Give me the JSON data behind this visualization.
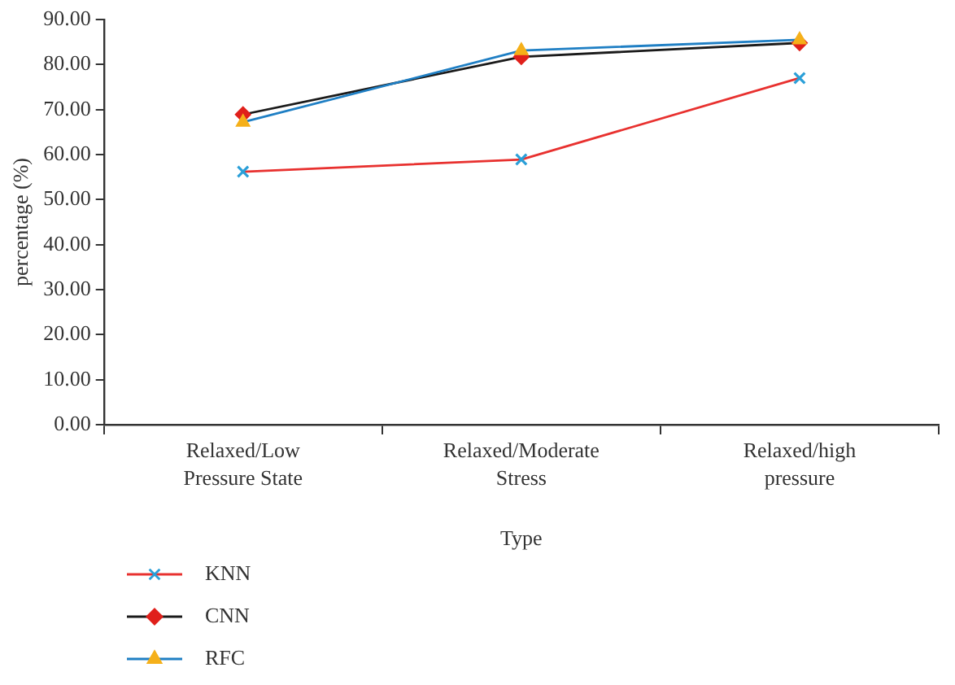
{
  "chart_data": {
    "type": "line",
    "xlabel": "Type",
    "ylabel": "percentage (%)",
    "categories": [
      "Relaxed/Low Pressure State",
      "Relaxed/Moderate Stress",
      "Relaxed/high pressure"
    ],
    "series": [
      {
        "name": "KNN",
        "color": "#e8312f",
        "marker": "cross",
        "values": [
          56.2,
          58.9,
          77.0
        ]
      },
      {
        "name": "CNN",
        "color": "#1a1a1a",
        "marker": "diamond",
        "values": [
          68.9,
          81.7,
          84.8
        ]
      },
      {
        "name": "RFC",
        "color": "#1f7fc4",
        "marker": "triangle",
        "values": [
          67.2,
          83.1,
          85.5
        ]
      }
    ],
    "ylim": [
      0,
      90
    ],
    "yticks": [
      {
        "value": 0,
        "label": "0.00"
      },
      {
        "value": 10,
        "label": "10.00"
      },
      {
        "value": 20,
        "label": "20.00"
      },
      {
        "value": 30,
        "label": "30.00"
      },
      {
        "value": 40,
        "label": "40.00"
      },
      {
        "value": 50,
        "label": "50.00"
      },
      {
        "value": 60,
        "label": "60.00"
      },
      {
        "value": 70,
        "label": "70.00"
      },
      {
        "value": 80,
        "label": "80.00"
      },
      {
        "value": 90,
        "label": "90.00"
      }
    ],
    "grid": false,
    "legend": "bottom left",
    "line_style": "solid"
  }
}
